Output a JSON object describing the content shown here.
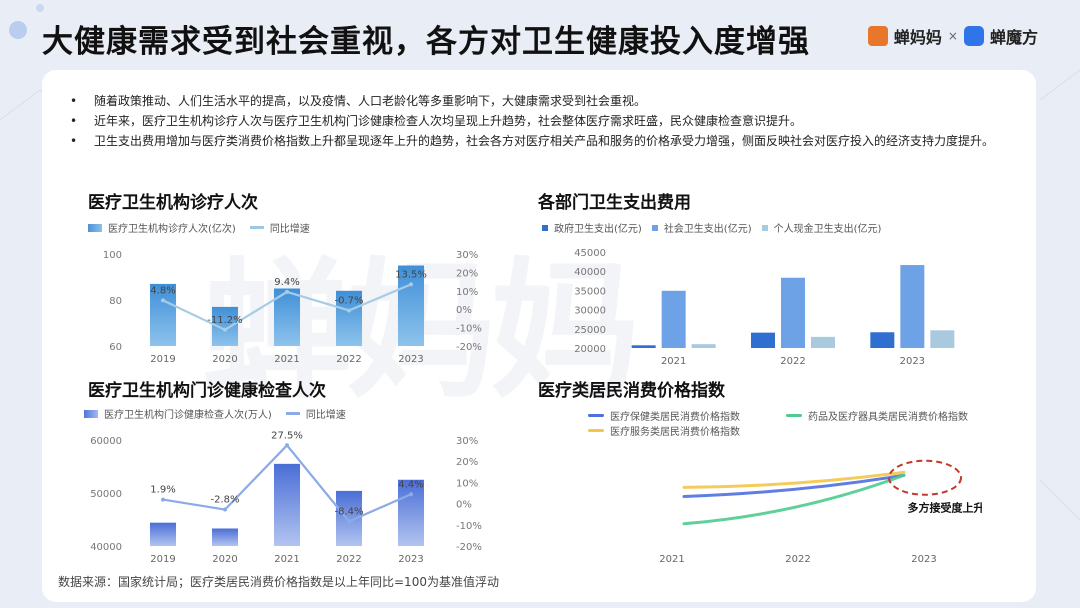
{
  "header": {
    "title": "大健康需求受到社会重视，各方对卫生健康投入度增强",
    "brand_a": "蝉妈妈",
    "brand_sep": "×",
    "brand_b": "蝉魔方"
  },
  "watermark": "蝉妈妈",
  "bullets": [
    "随着政策推动、人们生活水平的提高，以及疫情、人口老龄化等多重影响下，大健康需求受到社会重视。",
    "近年来，医疗卫生机构诊疗人次与医疗卫生机构门诊健康检查人次均呈现上升趋势，社会整体医疗需求旺盛，民众健康检查意识提升。",
    "卫生支出费用增加与医疗类消费价格指数上升都呈现逐年上升的趋势，社会各方对医疗相关产品和服务的价格承受力增强，侧面反映社会对医疗投入的经济支持力度提升。"
  ],
  "source": "数据来源：国家统计局；医疗类居民消费价格指数是以上年同比=100为基准值浮动",
  "colors": {
    "bar": "#5b9bd8",
    "line": "#a9cfe8",
    "blue_bar": "#6f8fe0",
    "blue_line": "#8aaae8"
  },
  "chart_data": [
    {
      "type": "bar",
      "title": "医疗卫生机构诊疗人次",
      "categories": [
        "2019",
        "2020",
        "2021",
        "2022",
        "2023"
      ],
      "series": [
        {
          "name": "医疗卫生机构诊疗人次(亿次)",
          "values": [
            87,
            77,
            85,
            84,
            95
          ]
        },
        {
          "name": "同比增速",
          "kind": "line",
          "axis": "right",
          "values": [
            4.8,
            -11.2,
            9.4,
            -0.7,
            13.5
          ]
        }
      ],
      "data_labels": [
        "4.8%",
        "-11.2%",
        "9.4%",
        "-0.7%",
        "13.5%"
      ],
      "ylim": [
        60,
        100
      ],
      "yticks": [
        "60",
        "80",
        "100"
      ],
      "y2lim": [
        -20,
        30
      ],
      "y2ticks": [
        "-20%",
        "-10%",
        "0%",
        "10%",
        "20%",
        "30%"
      ],
      "legend": "top-left"
    },
    {
      "type": "bar",
      "title": "各部门卫生支出费用",
      "categories": [
        "2021",
        "2022",
        "2023"
      ],
      "series": [
        {
          "name": "政府卫生支出(亿元)",
          "values": [
            20700,
            24000,
            24100
          ]
        },
        {
          "name": "社会卫生支出(亿元)",
          "values": [
            34900,
            38300,
            41600
          ]
        },
        {
          "name": "个人现金卫生支出(亿元)",
          "values": [
            21000,
            22900,
            24600
          ]
        }
      ],
      "ylim": [
        20000,
        45000
      ],
      "yticks": [
        "20000",
        "25000",
        "30000",
        "35000",
        "40000",
        "45000"
      ],
      "legend": "top-left"
    },
    {
      "type": "bar",
      "title": "医疗卫生机构门诊健康检查人次",
      "categories": [
        "2019",
        "2020",
        "2021",
        "2022",
        "2023"
      ],
      "series": [
        {
          "name": "医疗卫生机构门诊健康检查人次(万人)",
          "values": [
            44400,
            43300,
            55500,
            50400,
            52500
          ]
        },
        {
          "name": "同比增速",
          "kind": "line",
          "axis": "right",
          "values": [
            1.9,
            -2.8,
            27.5,
            -8.4,
            4.4
          ]
        }
      ],
      "data_labels": [
        "1.9%",
        "-2.8%",
        "27.5%",
        "-8.4%",
        "4.4%"
      ],
      "ylim": [
        40000,
        60000
      ],
      "yticks": [
        "40000",
        "50000",
        "60000"
      ],
      "y2lim": [
        -20,
        30
      ],
      "y2ticks": [
        "-20%",
        "-10%",
        "0%",
        "10%",
        "20%",
        "30%"
      ],
      "legend": "top-left"
    },
    {
      "type": "line",
      "title": "医疗类居民消费价格指数",
      "x": [
        "2021",
        "2022",
        "2023"
      ],
      "series": [
        {
          "name": "医疗保健类居民消费价格指数",
          "values": [
            100.4,
            100.6,
            101.1
          ]
        },
        {
          "name": "药品及医疗器具类居民消费价格指数",
          "values": [
            99.5,
            100.0,
            101.1
          ]
        },
        {
          "name": "医疗服务类居民消费价格指数",
          "values": [
            100.7,
            100.8,
            101.2
          ]
        }
      ],
      "ylim": [
        98.5,
        102
      ],
      "annotation": "多方接受度上升",
      "legend": "top"
    }
  ]
}
